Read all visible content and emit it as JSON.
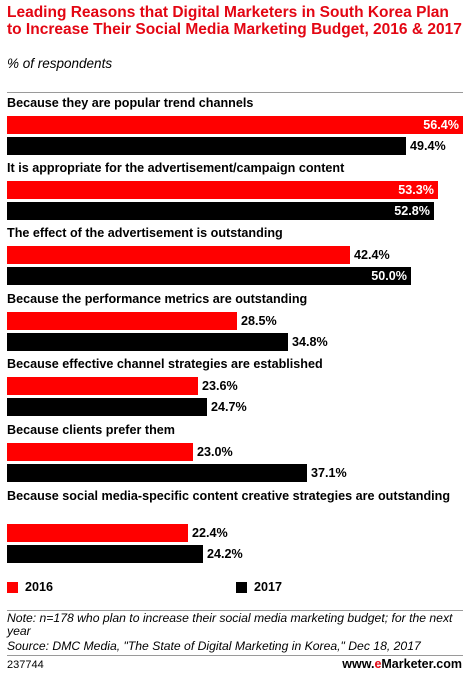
{
  "chart_data": {
    "type": "bar",
    "orientation": "horizontal",
    "title": "Leading Reasons that Digital Marketers in South Korea Plan to Increase Their Social Media Marketing Budget, 2016 & 2017",
    "subtitle": "% of respondents",
    "categories": [
      "Because they are popular trend channels",
      "It is appropriate for the advertisement/campaign content",
      "The effect of the advertisement is outstanding",
      "Because the performance metrics are outstanding",
      "Because effective channel strategies are established",
      "Because clients prefer them",
      "Because social media-specific content creative strategies are outstanding"
    ],
    "series": [
      {
        "name": "2016",
        "color": "#ff0000",
        "values": [
          56.4,
          53.3,
          42.4,
          28.5,
          23.6,
          23.0,
          22.4
        ],
        "labels": [
          "56.4%",
          "53.3%",
          "42.4%",
          "28.5%",
          "23.6%",
          "23.0%",
          "22.4%"
        ]
      },
      {
        "name": "2017",
        "color": "#000000",
        "values": [
          49.4,
          52.8,
          50.0,
          34.8,
          24.7,
          37.1,
          24.2
        ],
        "labels": [
          "49.4%",
          "52.8%",
          "50.0%",
          "34.8%",
          "24.7%",
          "37.1%",
          "24.2%"
        ]
      }
    ],
    "xlim": [
      0,
      56.4
    ],
    "grid": false,
    "legend": "bottom"
  },
  "footer": {
    "note": "Note: n=178 who plan to increase their social media marketing budget; for the next year",
    "source": "Source: DMC Media, \"The State of Digital Marketing in Korea,\" Dec 18, 2017",
    "chart_id": "237744",
    "brand_prefix": "www.",
    "brand_accent": "e",
    "brand_rest": "Marketer.com"
  },
  "colors": {
    "title": "#e30613",
    "divider": "#9a9a9a"
  }
}
